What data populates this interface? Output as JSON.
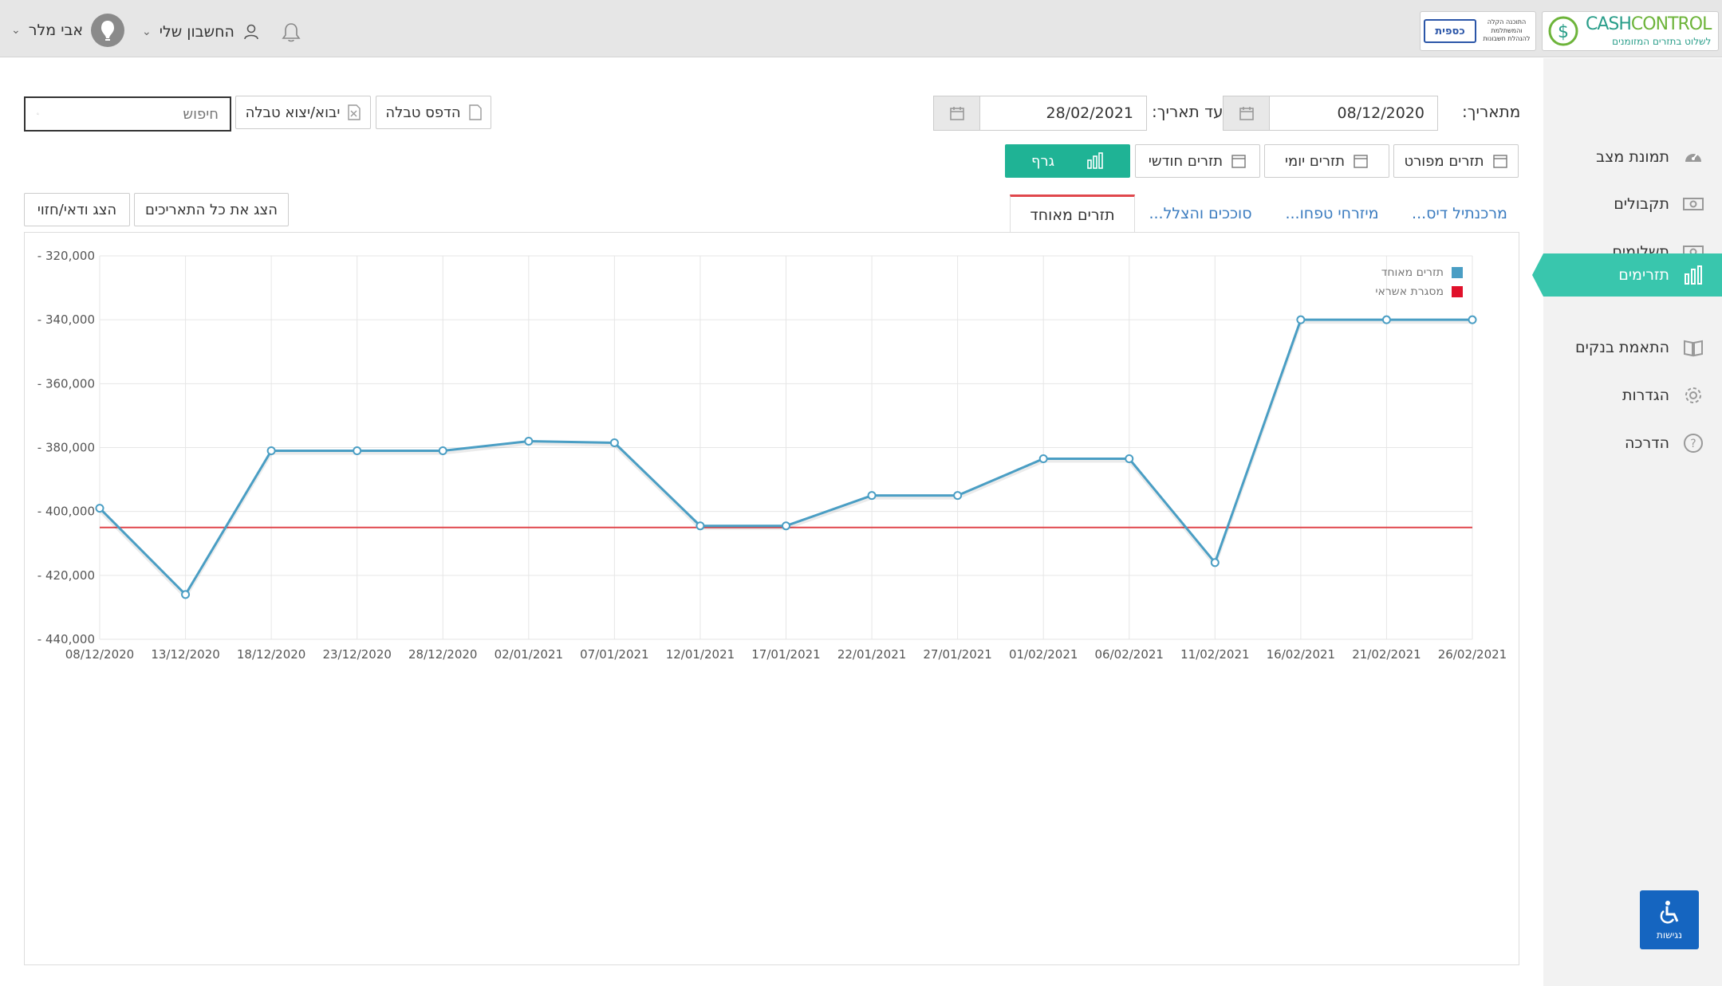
{
  "topbar": {
    "user_name": "אבי מלר",
    "account_label": "החשבון שלי",
    "logo_cash_big_a": "CASH",
    "logo_cash_big_b": "CONTROL",
    "logo_cash_tagline": "לשלוט בתזרים המזומנים",
    "logo_kaspit_text": "התוכנה הקלה והמשתלמת להנהלת חשבונות",
    "logo_kaspit_mark": "כספית"
  },
  "sidebar": {
    "items": [
      {
        "label": "תמונת מצב",
        "icon": "dashboard-icon"
      },
      {
        "label": "תקבולים",
        "icon": "cash-icon"
      },
      {
        "label": "תשלומים",
        "icon": "cash-icon"
      },
      {
        "label": "תזרימים",
        "icon": "bar-chart-icon",
        "active": true
      },
      {
        "label": "התאמת בנקים",
        "icon": "book-icon"
      },
      {
        "label": "הגדרות",
        "icon": "gear-icon"
      },
      {
        "label": "הדרכה",
        "icon": "help-icon"
      }
    ]
  },
  "filters": {
    "from_label": "מתאריך:",
    "from_value": "08/12/2020",
    "to_label": "עד תאריך:",
    "to_value": "28/02/2021"
  },
  "toolbar": {
    "print_label": "הדפס טבלה",
    "import_export_label": "יבוא/יצוא טבלה",
    "search_placeholder": "חיפוש",
    "show_all_dates_label": "הצג את כל התאריכים",
    "show_forecast_label": "הצג ודאי/חזוי"
  },
  "views": {
    "detailed_label": "תזרים מפורט",
    "daily_label": "תזרים יומי",
    "monthly_label": "תזרים חודשי",
    "graph_label": "גרף"
  },
  "tabs": [
    {
      "label": "מרכנתיל דיס...",
      "active": false
    },
    {
      "label": "מיזרחי טפחו...",
      "active": false
    },
    {
      "label": "סוככים והצלל...",
      "active": false
    },
    {
      "label": "תזרים מאוחד",
      "active": true
    }
  ],
  "accessibility_label": "נגישות",
  "colors": {
    "accent": "#39c6ad",
    "series_line": "#4a9ec4",
    "credit_line": "#e0474c"
  },
  "chart_data": {
    "type": "line",
    "categories": [
      "08/12/2020",
      "13/12/2020",
      "18/12/2020",
      "23/12/2020",
      "28/12/2020",
      "02/01/2021",
      "07/01/2021",
      "12/01/2021",
      "17/01/2021",
      "22/01/2021",
      "27/01/2021",
      "01/02/2021",
      "06/02/2021",
      "11/02/2021",
      "16/02/2021",
      "21/02/2021",
      "26/02/2021"
    ],
    "series": [
      {
        "name": "תזרים מאוחד",
        "color": "#4a9ec4",
        "values": [
          -399000,
          -426000,
          -381000,
          -381000,
          -381000,
          -378000,
          -378500,
          -404500,
          -404500,
          -395000,
          -395000,
          -383500,
          -383500,
          -416000,
          -340000,
          -340000,
          -340000
        ]
      },
      {
        "name": "מסגרת אשראי",
        "color": "#e0474c",
        "values": [
          -405000,
          -405000,
          -405000,
          -405000,
          -405000,
          -405000,
          -405000,
          -405000,
          -405000,
          -405000,
          -405000,
          -405000,
          -405000,
          -405000,
          -405000,
          -405000,
          -405000
        ]
      }
    ],
    "yticks": [
      "- 320,000",
      "- 340,000",
      "- 360,000",
      "- 380,000",
      "- 400,000",
      "- 420,000",
      "- 440,000"
    ],
    "ylim": [
      -440000,
      -320000
    ],
    "grid": true,
    "legend_position": "top-right"
  }
}
